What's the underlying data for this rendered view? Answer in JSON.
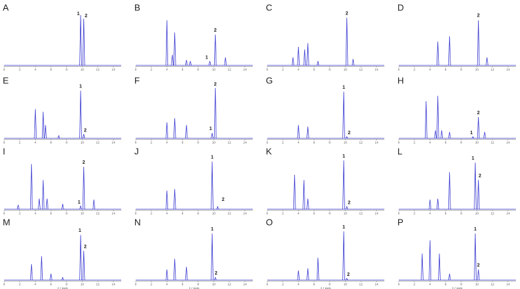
{
  "chart_data": [
    {
      "type": "chromatogram",
      "title": "A",
      "x": [
        9.8,
        10.2
      ],
      "values": [
        95,
        88
      ],
      "annotations": [
        {
          "text": "1",
          "x": 9.5,
          "y": 97
        },
        {
          "text": "2",
          "x": 10.5,
          "y": 93
        }
      ],
      "xlim": [
        0,
        15
      ],
      "xticks": [
        0,
        2,
        4,
        6,
        8,
        10,
        12,
        14
      ],
      "ylim": [
        0,
        100
      ],
      "color": "#3c3cd2"
    },
    {
      "type": "chromatogram",
      "title": "B",
      "x": [
        4.0,
        4.7,
        5.0,
        6.5,
        7.0,
        9.5,
        10.2,
        11.5
      ],
      "values": [
        85,
        20,
        62,
        10,
        8,
        8,
        58,
        15
      ],
      "annotations": [
        {
          "text": "1",
          "x": 9.1,
          "y": 15
        },
        {
          "text": "2",
          "x": 10.2,
          "y": 66
        }
      ],
      "xlim": [
        0,
        15
      ],
      "xticks": [
        0,
        2,
        4,
        6,
        8,
        10,
        12,
        14
      ],
      "ylim": [
        0,
        100
      ],
      "color": "#3c3cd2"
    },
    {
      "type": "chromatogram",
      "title": "C",
      "x": [
        3.3,
        4.0,
        4.8,
        5.2,
        6.5,
        10.2,
        11.0
      ],
      "values": [
        15,
        35,
        30,
        42,
        8,
        90,
        12
      ],
      "annotations": [
        {
          "text": "2",
          "x": 10.2,
          "y": 98
        }
      ],
      "xlim": [
        0,
        15
      ],
      "xticks": [
        0,
        2,
        4,
        6,
        8,
        10,
        12,
        14
      ],
      "ylim": [
        0,
        100
      ],
      "color": "#3c3cd2"
    },
    {
      "type": "chromatogram",
      "title": "D",
      "x": [
        5.0,
        6.5,
        10.2,
        11.3
      ],
      "values": [
        45,
        55,
        85,
        15
      ],
      "annotations": [
        {
          "text": "2",
          "x": 10.2,
          "y": 94
        }
      ],
      "xlim": [
        0,
        15
      ],
      "xticks": [
        0,
        2,
        4,
        6,
        8,
        10,
        12,
        14
      ],
      "ylim": [
        0,
        100
      ],
      "color": "#3c3cd2"
    },
    {
      "type": "chromatogram",
      "title": "E",
      "x": [
        4.0,
        5.0,
        5.3,
        7.0,
        9.8,
        10.2
      ],
      "values": [
        55,
        50,
        25,
        5,
        90,
        8
      ],
      "annotations": [
        {
          "text": "1",
          "x": 9.8,
          "y": 98
        },
        {
          "text": "2",
          "x": 10.4,
          "y": 15
        }
      ],
      "xlim": [
        0,
        15
      ],
      "xticks": [
        0,
        2,
        4,
        6,
        8,
        10,
        12,
        14
      ],
      "ylim": [
        0,
        100
      ],
      "color": "#3c3cd2"
    },
    {
      "type": "chromatogram",
      "title": "F",
      "x": [
        4.0,
        5.0,
        6.5,
        9.8,
        10.2
      ],
      "values": [
        30,
        38,
        25,
        10,
        95
      ],
      "annotations": [
        {
          "text": "1",
          "x": 9.6,
          "y": 18
        },
        {
          "text": "2",
          "x": 10.2,
          "y": 102
        }
      ],
      "xlim": [
        0,
        15
      ],
      "xticks": [
        0,
        2,
        4,
        6,
        8,
        10,
        12,
        14
      ],
      "ylim": [
        0,
        100
      ],
      "color": "#3c3cd2"
    },
    {
      "type": "chromatogram",
      "title": "G",
      "x": [
        4.0,
        5.2,
        9.8,
        10.2
      ],
      "values": [
        25,
        22,
        88,
        3
      ],
      "annotations": [
        {
          "text": "1",
          "x": 9.8,
          "y": 96
        },
        {
          "text": "2",
          "x": 10.5,
          "y": 10
        }
      ],
      "xlim": [
        0,
        15
      ],
      "xticks": [
        0,
        2,
        4,
        6,
        8,
        10,
        12,
        14
      ],
      "ylim": [
        0,
        100
      ],
      "color": "#3c3cd2"
    },
    {
      "type": "chromatogram",
      "title": "H",
      "x": [
        3.5,
        4.7,
        5.0,
        5.5,
        6.5,
        9.5,
        10.2,
        11.0
      ],
      "values": [
        70,
        15,
        80,
        15,
        12,
        3,
        40,
        12
      ],
      "annotations": [
        {
          "text": "1",
          "x": 9.3,
          "y": 10
        },
        {
          "text": "2",
          "x": 10.2,
          "y": 48
        }
      ],
      "xlim": [
        0,
        15
      ],
      "xticks": [
        0,
        2,
        4,
        6,
        8,
        10,
        12,
        14
      ],
      "ylim": [
        0,
        100
      ],
      "color": "#3c3cd2"
    },
    {
      "type": "chromatogram",
      "title": "I",
      "x": [
        1.8,
        3.5,
        4.5,
        5.0,
        5.5,
        7.5,
        9.8,
        10.2,
        11.5
      ],
      "values": [
        8,
        85,
        20,
        55,
        20,
        10,
        6,
        80,
        18
      ],
      "annotations": [
        {
          "text": "1",
          "x": 9.6,
          "y": 13
        },
        {
          "text": "2",
          "x": 10.2,
          "y": 88
        }
      ],
      "xlim": [
        0,
        15
      ],
      "xticks": [
        0,
        2,
        4,
        6,
        8,
        10,
        12,
        14
      ],
      "ylim": [
        0,
        100
      ],
      "color": "#3c3cd2"
    },
    {
      "type": "chromatogram",
      "title": "J",
      "x": [
        4.0,
        5.0,
        9.8,
        10.5
      ],
      "values": [
        35,
        38,
        90,
        5
      ],
      "annotations": [
        {
          "text": "1",
          "x": 9.8,
          "y": 98
        },
        {
          "text": "2",
          "x": 11.2,
          "y": 18
        }
      ],
      "xlim": [
        0,
        15
      ],
      "xticks": [
        0,
        2,
        4,
        6,
        8,
        10,
        12,
        14
      ],
      "ylim": [
        0,
        100
      ],
      "color": "#3c3cd2"
    },
    {
      "type": "chromatogram",
      "title": "K",
      "x": [
        3.5,
        4.7,
        5.2,
        9.8,
        10.2
      ],
      "values": [
        65,
        55,
        20,
        92,
        5
      ],
      "annotations": [
        {
          "text": "1",
          "x": 9.8,
          "y": 100
        },
        {
          "text": "2",
          "x": 10.5,
          "y": 12
        }
      ],
      "xlim": [
        0,
        15
      ],
      "xticks": [
        0,
        2,
        4,
        6,
        8,
        10,
        12,
        14
      ],
      "ylim": [
        0,
        100
      ],
      "color": "#3c3cd2"
    },
    {
      "type": "chromatogram",
      "title": "L",
      "x": [
        4.0,
        5.0,
        6.5,
        9.8,
        10.2
      ],
      "values": [
        18,
        20,
        70,
        88,
        55
      ],
      "annotations": [
        {
          "text": "1",
          "x": 9.5,
          "y": 96
        },
        {
          "text": "2",
          "x": 10.4,
          "y": 63
        }
      ],
      "xlim": [
        0,
        15
      ],
      "xticks": [
        0,
        2,
        4,
        6,
        8,
        10,
        12,
        14
      ],
      "ylim": [
        0,
        100
      ],
      "color": "#3c3cd2"
    },
    {
      "type": "chromatogram",
      "title": "M",
      "x": [
        3.5,
        4.8,
        6.0,
        7.5,
        9.8,
        10.2
      ],
      "values": [
        30,
        45,
        12,
        5,
        85,
        55
      ],
      "annotations": [
        {
          "text": "1",
          "x": 9.7,
          "y": 93
        },
        {
          "text": "2",
          "x": 10.4,
          "y": 63
        }
      ],
      "xlim": [
        0,
        15
      ],
      "xticks": [
        0,
        2,
        4,
        6,
        8,
        10,
        12,
        14
      ],
      "ylim": [
        0,
        100
      ],
      "color": "#3c3cd2",
      "xlabel": "t / min"
    },
    {
      "type": "chromatogram",
      "title": "N",
      "x": [
        4.0,
        5.0,
        6.5,
        9.8,
        10.2
      ],
      "values": [
        20,
        40,
        25,
        88,
        5
      ],
      "annotations": [
        {
          "text": "1",
          "x": 9.8,
          "y": 96
        },
        {
          "text": "2",
          "x": 10.3,
          "y": 13
        }
      ],
      "xlim": [
        0,
        15
      ],
      "xticks": [
        0,
        2,
        4,
        6,
        8,
        10,
        12,
        14
      ],
      "ylim": [
        0,
        100
      ],
      "color": "#3c3cd2",
      "xlabel": "t / min"
    },
    {
      "type": "chromatogram",
      "title": "O",
      "x": [
        4.0,
        5.2,
        6.5,
        9.8,
        10.2
      ],
      "values": [
        18,
        22,
        42,
        92,
        3
      ],
      "annotations": [
        {
          "text": "1",
          "x": 9.8,
          "y": 100
        },
        {
          "text": "2",
          "x": 10.4,
          "y": 10
        }
      ],
      "xlim": [
        0,
        15
      ],
      "xticks": [
        0,
        2,
        4,
        6,
        8,
        10,
        12,
        14
      ],
      "ylim": [
        0,
        100
      ],
      "color": "#3c3cd2",
      "xlabel": "t / min"
    },
    {
      "type": "chromatogram",
      "title": "P",
      "x": [
        3.0,
        4.0,
        5.2,
        6.5,
        9.8,
        10.2
      ],
      "values": [
        50,
        75,
        50,
        12,
        88,
        20
      ],
      "annotations": [
        {
          "text": "1",
          "x": 9.8,
          "y": 96
        },
        {
          "text": "2",
          "x": 10.2,
          "y": 28
        }
      ],
      "xlim": [
        0,
        15
      ],
      "xticks": [
        0,
        2,
        4,
        6,
        8,
        10,
        12,
        14
      ],
      "ylim": [
        0,
        100
      ],
      "color": "#3c3cd2",
      "xlabel": "t / min"
    }
  ]
}
